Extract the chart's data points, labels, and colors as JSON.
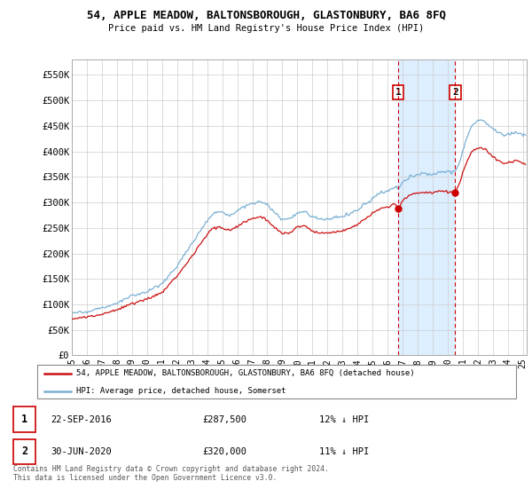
{
  "title": "54, APPLE MEADOW, BALTONSBOROUGH, GLASTONBURY, BA6 8FQ",
  "subtitle": "Price paid vs. HM Land Registry's House Price Index (HPI)",
  "legend_line1": "54, APPLE MEADOW, BALTONSBOROUGH, GLASTONBURY, BA6 8FQ (detached house)",
  "legend_line2": "HPI: Average price, detached house, Somerset",
  "footer": "Contains HM Land Registry data © Crown copyright and database right 2024.\nThis data is licensed under the Open Government Licence v3.0.",
  "annotation1_label": "1",
  "annotation1_date": "22-SEP-2016",
  "annotation1_price": "£287,500",
  "annotation1_hpi": "12% ↓ HPI",
  "annotation2_label": "2",
  "annotation2_date": "30-JUN-2020",
  "annotation2_price": "£320,000",
  "annotation2_hpi": "11% ↓ HPI",
  "hpi_color": "#7ab0d4",
  "price_color": "#cc1111",
  "annotation_color": "#cc0000",
  "shade_color": "#ddeeff",
  "ylim": [
    0,
    580000
  ],
  "ytick_vals": [
    0,
    50000,
    100000,
    150000,
    200000,
    250000,
    300000,
    350000,
    400000,
    450000,
    500000,
    550000
  ],
  "ytick_labels": [
    "£0",
    "£50K",
    "£100K",
    "£150K",
    "£200K",
    "£250K",
    "£300K",
    "£350K",
    "£400K",
    "£450K",
    "£500K",
    "£550K"
  ],
  "sale1_year": 2016.708,
  "sale1_price": 287500,
  "sale2_year": 2020.5,
  "sale2_price": 320000,
  "xmin": 1995,
  "xmax": 2025.25,
  "xtick_years": [
    1995,
    1996,
    1997,
    1998,
    1999,
    2000,
    2001,
    2002,
    2003,
    2004,
    2005,
    2006,
    2007,
    2008,
    2009,
    2010,
    2011,
    2012,
    2013,
    2014,
    2015,
    2016,
    2017,
    2018,
    2019,
    2020,
    2021,
    2022,
    2023,
    2024,
    2025
  ]
}
